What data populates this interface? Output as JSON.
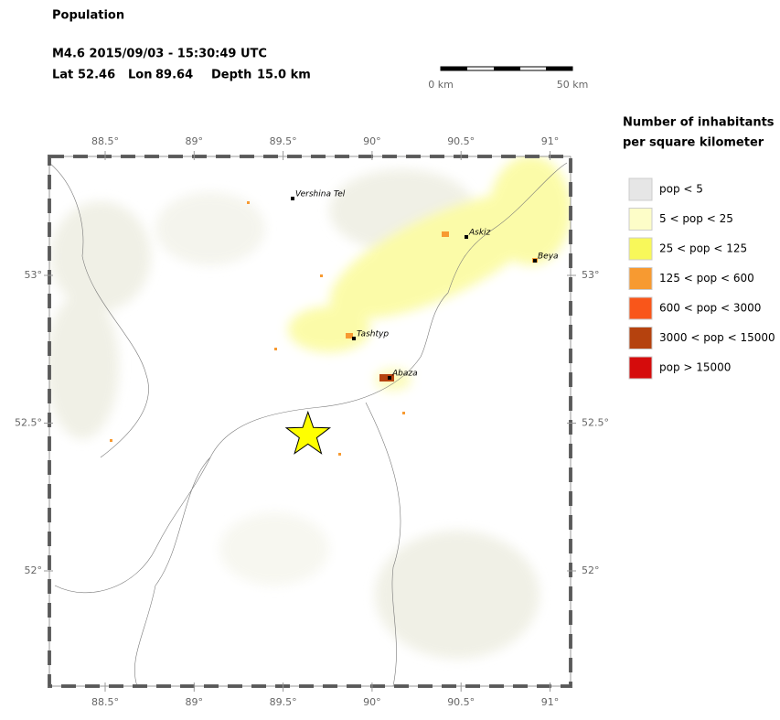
{
  "header": {
    "title": "Population",
    "event": "M4.6  2015/09/03 - 15:30:49 UTC",
    "lat_label": "Lat",
    "lat": "52.46",
    "lon_label": "Lon",
    "lon": "89.64",
    "depth_label": "Depth",
    "depth": "15.0 km"
  },
  "scale_bar": {
    "start": "0 km",
    "end": "50 km"
  },
  "map": {
    "epicenter": {
      "lat": 52.46,
      "lon": 89.64
    },
    "lon_ticks": [
      {
        "value": 88.5,
        "label": "88.5°"
      },
      {
        "value": 89,
        "label": "89°"
      },
      {
        "value": 89.5,
        "label": "89.5°"
      },
      {
        "value": 90,
        "label": "90°"
      },
      {
        "value": 90.5,
        "label": "90.5°"
      },
      {
        "value": 91,
        "label": "91°"
      }
    ],
    "lat_ticks": [
      {
        "value": 53,
        "label": "53°"
      },
      {
        "value": 52.5,
        "label": "52.5°"
      },
      {
        "value": 52,
        "label": "52°"
      }
    ],
    "cities": [
      "Vershina Tel",
      "Askiz",
      "Beya",
      "Tashtyp",
      "Abaza"
    ]
  },
  "legend": {
    "title": [
      "Number of inhabitants",
      "per square kilometer"
    ],
    "items": [
      {
        "label": "pop < 5",
        "color": "#e6e6e6"
      },
      {
        "label": "5 < pop < 25",
        "color": "#fdfdc8"
      },
      {
        "label": "25 < pop < 125",
        "color": "#f8f85a"
      },
      {
        "label": "125 < pop < 600",
        "color": "#f79a31"
      },
      {
        "label": "600 < pop < 3000",
        "color": "#f9561a"
      },
      {
        "label": "3000 < pop < 15000",
        "color": "#b5420e"
      },
      {
        "label": "pop > 15000",
        "color": "#d50c0c"
      }
    ]
  }
}
